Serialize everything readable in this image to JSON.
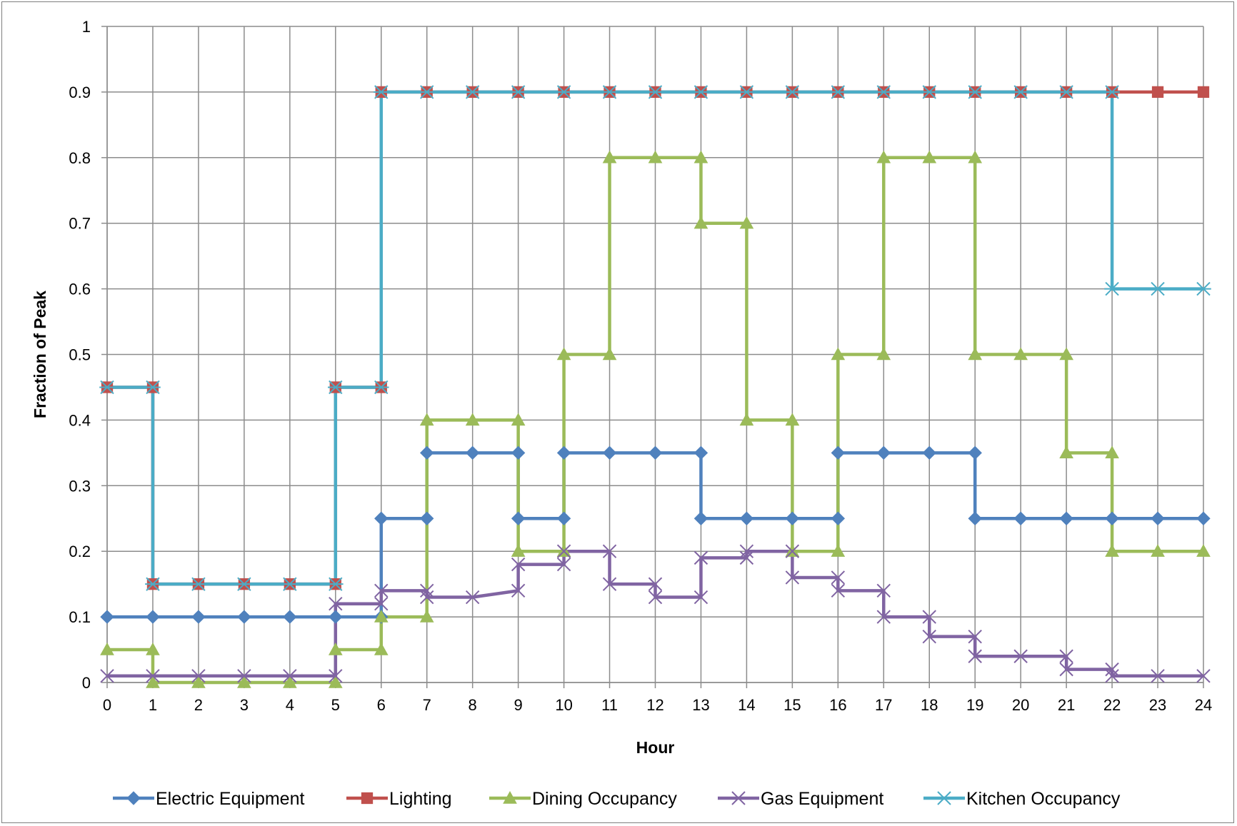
{
  "chart_data": {
    "type": "line",
    "step": true,
    "xlabel": "Hour",
    "ylabel": "Fraction of Peak",
    "xlim": [
      0,
      24
    ],
    "ylim": [
      0,
      1
    ],
    "x_ticks": [
      0,
      1,
      2,
      3,
      4,
      5,
      6,
      7,
      8,
      9,
      10,
      11,
      12,
      13,
      14,
      15,
      16,
      17,
      18,
      19,
      20,
      21,
      22,
      23,
      24
    ],
    "y_ticks": [
      0,
      0.1,
      0.2,
      0.3,
      0.4,
      0.5,
      0.6,
      0.7,
      0.8,
      0.9,
      1
    ],
    "y_tick_labels": [
      "0",
      "0.1",
      "0.2",
      "0.3",
      "0.4",
      "0.5",
      "0.6",
      "0.7",
      "0.8",
      "0.9",
      "1"
    ],
    "grid": true,
    "legend_position": "bottom",
    "series": [
      {
        "name": "Electric Equipment",
        "color": "#4f81bd",
        "marker": "diamond",
        "points": [
          [
            0,
            0.1
          ],
          [
            1,
            0.1
          ],
          [
            2,
            0.1
          ],
          [
            3,
            0.1
          ],
          [
            4,
            0.1
          ],
          [
            5,
            0.1
          ],
          [
            6,
            0.1
          ],
          [
            6,
            0.25
          ],
          [
            7,
            0.25
          ],
          [
            7,
            0.35
          ],
          [
            8,
            0.35
          ],
          [
            9,
            0.35
          ],
          [
            9,
            0.25
          ],
          [
            10,
            0.25
          ],
          [
            10,
            0.35
          ],
          [
            11,
            0.35
          ],
          [
            12,
            0.35
          ],
          [
            13,
            0.35
          ],
          [
            13,
            0.25
          ],
          [
            14,
            0.25
          ],
          [
            15,
            0.25
          ],
          [
            16,
            0.25
          ],
          [
            16,
            0.35
          ],
          [
            17,
            0.35
          ],
          [
            18,
            0.35
          ],
          [
            19,
            0.35
          ],
          [
            19,
            0.25
          ],
          [
            20,
            0.25
          ],
          [
            21,
            0.25
          ],
          [
            22,
            0.25
          ],
          [
            23,
            0.25
          ],
          [
            24,
            0.25
          ]
        ]
      },
      {
        "name": "Lighting",
        "color": "#c0504d",
        "marker": "square",
        "points": [
          [
            0,
            0.45
          ],
          [
            1,
            0.45
          ],
          [
            1,
            0.15
          ],
          [
            2,
            0.15
          ],
          [
            3,
            0.15
          ],
          [
            4,
            0.15
          ],
          [
            5,
            0.15
          ],
          [
            5,
            0.45
          ],
          [
            6,
            0.45
          ],
          [
            6,
            0.9
          ],
          [
            7,
            0.9
          ],
          [
            8,
            0.9
          ],
          [
            9,
            0.9
          ],
          [
            10,
            0.9
          ],
          [
            11,
            0.9
          ],
          [
            12,
            0.9
          ],
          [
            13,
            0.9
          ],
          [
            14,
            0.9
          ],
          [
            15,
            0.9
          ],
          [
            16,
            0.9
          ],
          [
            17,
            0.9
          ],
          [
            18,
            0.9
          ],
          [
            19,
            0.9
          ],
          [
            20,
            0.9
          ],
          [
            21,
            0.9
          ],
          [
            22,
            0.9
          ],
          [
            23,
            0.9
          ],
          [
            24,
            0.9
          ]
        ]
      },
      {
        "name": "Dining Occupancy",
        "color": "#9bbb59",
        "marker": "triangle",
        "points": [
          [
            0,
            0.05
          ],
          [
            1,
            0.05
          ],
          [
            1,
            0
          ],
          [
            2,
            0
          ],
          [
            3,
            0
          ],
          [
            4,
            0
          ],
          [
            5,
            0
          ],
          [
            5,
            0.05
          ],
          [
            6,
            0.05
          ],
          [
            6,
            0.1
          ],
          [
            7,
            0.1
          ],
          [
            7,
            0.4
          ],
          [
            8,
            0.4
          ],
          [
            9,
            0.4
          ],
          [
            9,
            0.2
          ],
          [
            10,
            0.2
          ],
          [
            10,
            0.5
          ],
          [
            11,
            0.5
          ],
          [
            11,
            0.8
          ],
          [
            12,
            0.8
          ],
          [
            13,
            0.8
          ],
          [
            13,
            0.7
          ],
          [
            14,
            0.7
          ],
          [
            14,
            0.4
          ],
          [
            15,
            0.4
          ],
          [
            15,
            0.2
          ],
          [
            16,
            0.2
          ],
          [
            16,
            0.5
          ],
          [
            17,
            0.5
          ],
          [
            17,
            0.8
          ],
          [
            18,
            0.8
          ],
          [
            19,
            0.8
          ],
          [
            19,
            0.5
          ],
          [
            20,
            0.5
          ],
          [
            21,
            0.5
          ],
          [
            21,
            0.35
          ],
          [
            22,
            0.35
          ],
          [
            22,
            0.2
          ],
          [
            23,
            0.2
          ],
          [
            24,
            0.2
          ]
        ]
      },
      {
        "name": "Gas Equipment",
        "color": "#8064a2",
        "marker": "x",
        "points": [
          [
            0,
            0.01
          ],
          [
            1,
            0.01
          ],
          [
            2,
            0.01
          ],
          [
            3,
            0.01
          ],
          [
            4,
            0.01
          ],
          [
            5,
            0.01
          ],
          [
            5,
            0.12
          ],
          [
            6,
            0.12
          ],
          [
            6,
            0.14
          ],
          [
            7,
            0.14
          ],
          [
            7,
            0.13
          ],
          [
            8,
            0.13
          ],
          [
            9,
            0.14
          ],
          [
            9,
            0.18
          ],
          [
            10,
            0.18
          ],
          [
            10,
            0.2
          ],
          [
            11,
            0.2
          ],
          [
            11,
            0.15
          ],
          [
            12,
            0.15
          ],
          [
            12,
            0.13
          ],
          [
            13,
            0.13
          ],
          [
            13,
            0.19
          ],
          [
            14,
            0.19
          ],
          [
            14,
            0.2
          ],
          [
            15,
            0.2
          ],
          [
            15,
            0.16
          ],
          [
            16,
            0.16
          ],
          [
            16,
            0.14
          ],
          [
            17,
            0.14
          ],
          [
            17,
            0.1
          ],
          [
            18,
            0.1
          ],
          [
            18,
            0.07
          ],
          [
            19,
            0.07
          ],
          [
            19,
            0.04
          ],
          [
            20,
            0.04
          ],
          [
            21,
            0.04
          ],
          [
            21,
            0.02
          ],
          [
            22,
            0.02
          ],
          [
            22,
            0.01
          ],
          [
            23,
            0.01
          ],
          [
            24,
            0.01
          ]
        ]
      },
      {
        "name": "Kitchen Occupancy",
        "color": "#4bacc6",
        "marker": "asterisk",
        "points": [
          [
            0,
            0.45
          ],
          [
            1,
            0.45
          ],
          [
            1,
            0.15
          ],
          [
            2,
            0.15
          ],
          [
            3,
            0.15
          ],
          [
            4,
            0.15
          ],
          [
            5,
            0.15
          ],
          [
            5,
            0.45
          ],
          [
            6,
            0.45
          ],
          [
            6,
            0.9
          ],
          [
            7,
            0.9
          ],
          [
            8,
            0.9
          ],
          [
            9,
            0.9
          ],
          [
            10,
            0.9
          ],
          [
            11,
            0.9
          ],
          [
            12,
            0.9
          ],
          [
            13,
            0.9
          ],
          [
            14,
            0.9
          ],
          [
            15,
            0.9
          ],
          [
            16,
            0.9
          ],
          [
            17,
            0.9
          ],
          [
            18,
            0.9
          ],
          [
            19,
            0.9
          ],
          [
            20,
            0.9
          ],
          [
            21,
            0.9
          ],
          [
            22,
            0.9
          ],
          [
            22,
            0.6
          ],
          [
            23,
            0.6
          ],
          [
            24,
            0.6
          ]
        ]
      }
    ]
  }
}
